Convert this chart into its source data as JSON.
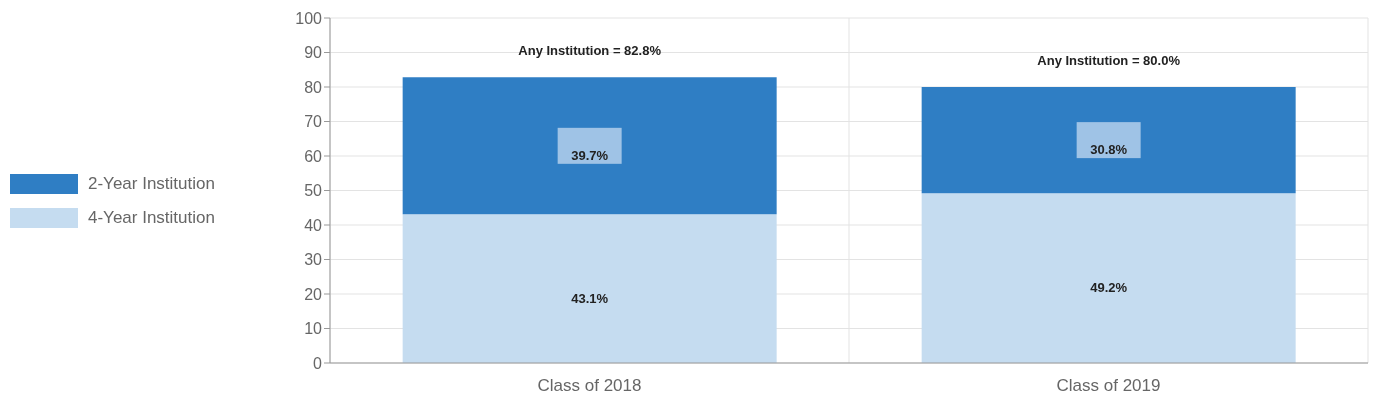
{
  "chart_data": {
    "type": "bar",
    "stacked": true,
    "categories": [
      "Class of 2018",
      "Class of 2019"
    ],
    "series": [
      {
        "name": "4-Year Institution",
        "color": "#c5dcf0",
        "values": [
          43.1,
          49.2
        ],
        "value_labels": [
          "43.1%",
          "49.2%"
        ]
      },
      {
        "name": "2-Year Institution",
        "color": "#2f7ec4",
        "values": [
          39.7,
          30.8
        ],
        "value_labels": [
          "39.7%",
          "30.8%"
        ]
      }
    ],
    "totals": [
      "Any Institution = 82.8%",
      "Any Institution = 80.0%"
    ],
    "ylim": [
      0,
      100
    ],
    "yticks": [
      0,
      10,
      20,
      30,
      40,
      50,
      60,
      70,
      80,
      90,
      100
    ],
    "grid": true,
    "legend": "left"
  }
}
